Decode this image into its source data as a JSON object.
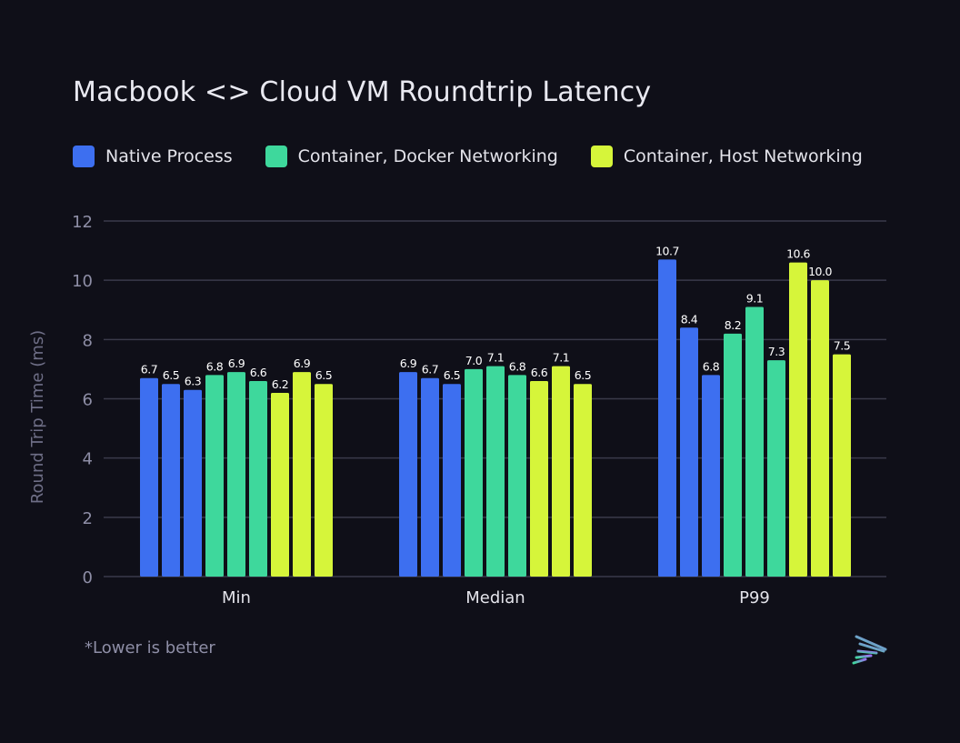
{
  "chart_data": {
    "type": "bar",
    "title": "Macbook <> Cloud VM Roundtrip Latency",
    "xlabel": "",
    "ylabel": "Round Trip Time (ms)",
    "ylim": [
      0,
      12
    ],
    "yticks": [
      "0",
      "2",
      "4",
      "6",
      "8",
      "10",
      "12"
    ],
    "grid": true,
    "legend_position": "top",
    "categories": [
      "Min",
      "Median",
      "P99"
    ],
    "series": [
      {
        "name": "Native Process",
        "color": "#3d6ff0",
        "groups": [
          {
            "values": [
              6.7,
              6.5,
              6.3
            ],
            "labels": [
              "6.7",
              "6.5",
              "6.3"
            ]
          },
          {
            "values": [
              6.9,
              6.7,
              6.5
            ],
            "labels": [
              "6.9",
              "6.7",
              "6.5"
            ]
          },
          {
            "values": [
              10.7,
              8.4,
              6.8
            ],
            "labels": [
              "10.7",
              "8.4",
              "6.8"
            ]
          }
        ]
      },
      {
        "name": "Container, Docker Networking",
        "color": "#3ed89c",
        "groups": [
          {
            "values": [
              6.8,
              6.9,
              6.6
            ],
            "labels": [
              "6.8",
              "6.9",
              "6.6"
            ]
          },
          {
            "values": [
              7.0,
              7.1,
              6.8
            ],
            "labels": [
              "7.0",
              "7.1",
              "6.8"
            ]
          },
          {
            "values": [
              8.2,
              9.1,
              7.3
            ],
            "labels": [
              "8.2",
              "9.1",
              "7.3"
            ]
          }
        ]
      },
      {
        "name": "Container, Host Networking",
        "color": "#d6f53a",
        "groups": [
          {
            "values": [
              6.2,
              6.9,
              6.5
            ],
            "labels": [
              "6.2",
              "6.9",
              "6.5"
            ]
          },
          {
            "values": [
              6.6,
              7.1,
              6.5
            ],
            "labels": [
              "6.6",
              "7.1",
              "6.5"
            ]
          },
          {
            "values": [
              10.6,
              10.0,
              7.5
            ],
            "labels": [
              "10.6",
              "10.0",
              "7.5"
            ]
          }
        ]
      }
    ],
    "annotations": [
      "*Lower is better"
    ]
  },
  "colors": {
    "background": "#0f0f18",
    "grid": "#3a3a4a",
    "tick_text": "#8e8ea6",
    "data_label": "#ffffff"
  },
  "logo": {
    "name": "brand-logo-icon"
  }
}
